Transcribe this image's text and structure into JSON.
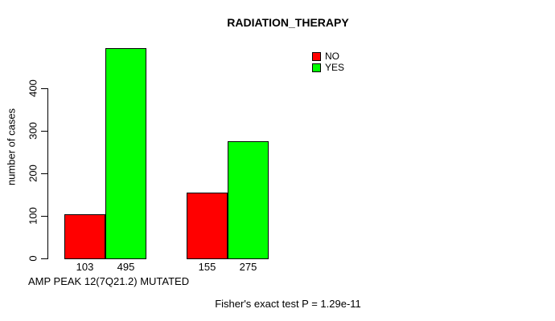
{
  "chart_data": {
    "type": "bar",
    "title": "RADIATION_THERAPY",
    "ylabel": "number of cases",
    "xlabel": "AMP PEAK 12(7Q21.2) MUTATED",
    "annotation": "Fisher's exact test P = 1.29e-11",
    "series": [
      {
        "name": "NO",
        "color": "#ff0000",
        "values": [
          103,
          155
        ]
      },
      {
        "name": "YES",
        "color": "#00ff00",
        "values": [
          495,
          275
        ]
      }
    ],
    "bar_value_labels": [
      "103",
      "495",
      "155",
      "275"
    ],
    "yticks": [
      0,
      100,
      200,
      300,
      400
    ],
    "ylim": [
      0,
      500
    ],
    "grid": false,
    "legend_position": "top-right",
    "axis_color": "#000000",
    "text_color": "#000000",
    "background_color": "#ffffff"
  }
}
